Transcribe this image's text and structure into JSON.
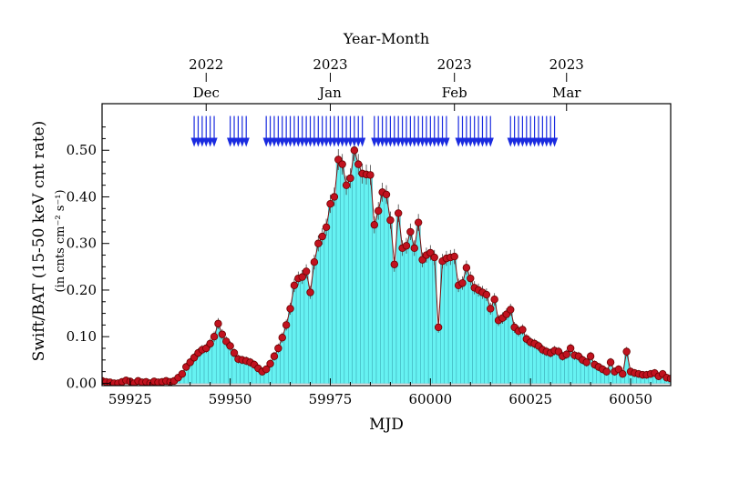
{
  "chart_data": {
    "type": "bar",
    "xlabel": "MJD",
    "ylabel": "Swift/BAT (15-50 keV cnt rate)",
    "ylabel_sub": "(in cnts cm⁻² s⁻¹)",
    "top_axis_title": "Year-Month",
    "xlim": [
      59918,
      60060
    ],
    "ylim": [
      -0.005,
      0.6
    ],
    "x_ticks": [
      59925,
      59950,
      59975,
      60000,
      60025,
      60050
    ],
    "y_ticks": [
      0.0,
      0.1,
      0.2,
      0.3,
      0.4,
      0.5
    ],
    "y_tick_labels": [
      "0.00",
      "0.10",
      "0.20",
      "0.30",
      "0.40",
      "0.50"
    ],
    "top_ticks": [
      {
        "mjd": 59944,
        "year": "2022",
        "month": "Dec"
      },
      {
        "mjd": 59975,
        "year": "2023",
        "month": "Jan"
      },
      {
        "mjd": 60006,
        "year": "2023",
        "month": "Feb"
      },
      {
        "mjd": 60034,
        "year": "2023",
        "month": "Mar"
      }
    ],
    "colors": {
      "bar_fill": "#66f2f2",
      "bar_edge": "#3aa9b5",
      "point": "#c1121f",
      "point_edge": "#6b0000",
      "line": "#7a1010",
      "arrow": "#1a2be0"
    },
    "points": [
      [
        59918,
        0.005
      ],
      [
        59919,
        0.003
      ],
      [
        59920,
        0.002
      ],
      [
        59921,
        0.0
      ],
      [
        59922,
        0.0
      ],
      [
        59923,
        0.003
      ],
      [
        59924,
        0.006
      ],
      [
        59925,
        0.004
      ],
      [
        59926,
        0.0
      ],
      [
        59927,
        0.005
      ],
      [
        59928,
        0.002
      ],
      [
        59929,
        0.003
      ],
      [
        59930,
        0.0
      ],
      [
        59931,
        0.004
      ],
      [
        59932,
        0.002
      ],
      [
        59933,
        0.003
      ],
      [
        59934,
        0.005
      ],
      [
        59935,
        0.003
      ],
      [
        59936,
        0.005
      ],
      [
        59937,
        0.012
      ],
      [
        59938,
        0.02
      ],
      [
        59939,
        0.035
      ],
      [
        59940,
        0.045
      ],
      [
        59941,
        0.055
      ],
      [
        59942,
        0.065
      ],
      [
        59943,
        0.072
      ],
      [
        59944,
        0.075
      ],
      [
        59945,
        0.085
      ],
      [
        59946,
        0.1
      ],
      [
        59947,
        0.128
      ],
      [
        59948,
        0.105
      ],
      [
        59949,
        0.09
      ],
      [
        59950,
        0.08
      ],
      [
        59951,
        0.065
      ],
      [
        59952,
        0.052
      ],
      [
        59953,
        0.05
      ],
      [
        59954,
        0.048
      ],
      [
        59955,
        0.045
      ],
      [
        59956,
        0.04
      ],
      [
        59957,
        0.032
      ],
      [
        59958,
        0.025
      ],
      [
        59959,
        0.03
      ],
      [
        59960,
        0.042
      ],
      [
        59961,
        0.058
      ],
      [
        59962,
        0.075
      ],
      [
        59963,
        0.098
      ],
      [
        59964,
        0.125
      ],
      [
        59965,
        0.16
      ],
      [
        59966,
        0.21
      ],
      [
        59967,
        0.225
      ],
      [
        59968,
        0.228
      ],
      [
        59969,
        0.24
      ],
      [
        59970,
        0.195
      ],
      [
        59971,
        0.26
      ],
      [
        59972,
        0.3
      ],
      [
        59973,
        0.315
      ],
      [
        59974,
        0.335
      ],
      [
        59975,
        0.385
      ],
      [
        59976,
        0.4
      ],
      [
        59977,
        0.48
      ],
      [
        59978,
        0.47
      ],
      [
        59979,
        0.425
      ],
      [
        59980,
        0.44
      ],
      [
        59981,
        0.5
      ],
      [
        59982,
        0.47
      ],
      [
        59983,
        0.45
      ],
      [
        59984,
        0.448
      ],
      [
        59985,
        0.447
      ],
      [
        59986,
        0.34
      ],
      [
        59987,
        0.37
      ],
      [
        59988,
        0.41
      ],
      [
        59989,
        0.405
      ],
      [
        59990,
        0.35
      ],
      [
        59991,
        0.255
      ],
      [
        59992,
        0.365
      ],
      [
        59993,
        0.29
      ],
      [
        59994,
        0.295
      ],
      [
        59995,
        0.325
      ],
      [
        59996,
        0.29
      ],
      [
        59997,
        0.345
      ],
      [
        59998,
        0.265
      ],
      [
        59999,
        0.275
      ],
      [
        60000,
        0.28
      ],
      [
        60001,
        0.27
      ],
      [
        60002,
        0.12
      ],
      [
        60003,
        0.262
      ],
      [
        60004,
        0.268
      ],
      [
        60005,
        0.27
      ],
      [
        60006,
        0.272
      ],
      [
        60007,
        0.21
      ],
      [
        60008,
        0.215
      ],
      [
        60009,
        0.248
      ],
      [
        60010,
        0.225
      ],
      [
        60011,
        0.205
      ],
      [
        60012,
        0.2
      ],
      [
        60013,
        0.195
      ],
      [
        60014,
        0.19
      ],
      [
        60015,
        0.16
      ],
      [
        60016,
        0.18
      ],
      [
        60017,
        0.135
      ],
      [
        60018,
        0.14
      ],
      [
        60019,
        0.148
      ],
      [
        60020,
        0.158
      ],
      [
        60021,
        0.12
      ],
      [
        60022,
        0.112
      ],
      [
        60023,
        0.115
      ],
      [
        60024,
        0.095
      ],
      [
        60025,
        0.088
      ],
      [
        60026,
        0.085
      ],
      [
        60027,
        0.08
      ],
      [
        60028,
        0.072
      ],
      [
        60029,
        0.068
      ],
      [
        60030,
        0.065
      ],
      [
        60031,
        0.07
      ],
      [
        60032,
        0.068
      ],
      [
        60033,
        0.058
      ],
      [
        60034,
        0.062
      ],
      [
        60035,
        0.075
      ],
      [
        60036,
        0.06
      ],
      [
        60037,
        0.058
      ],
      [
        60038,
        0.05
      ],
      [
        60039,
        0.045
      ],
      [
        60040,
        0.058
      ],
      [
        60041,
        0.04
      ],
      [
        60042,
        0.035
      ],
      [
        60043,
        0.03
      ],
      [
        60044,
        0.025
      ],
      [
        60045,
        0.045
      ],
      [
        60046,
        0.025
      ],
      [
        60047,
        0.03
      ],
      [
        60048,
        0.02
      ],
      [
        60049,
        0.068
      ],
      [
        60050,
        0.025
      ],
      [
        60051,
        0.022
      ],
      [
        60052,
        0.02
      ],
      [
        60053,
        0.018
      ],
      [
        60054,
        0.018
      ],
      [
        60055,
        0.02
      ],
      [
        60056,
        0.022
      ],
      [
        60057,
        0.015
      ],
      [
        60058,
        0.02
      ],
      [
        60059,
        0.012
      ],
      [
        60060,
        0.01
      ]
    ],
    "arrows_mjd": [
      59941,
      59942,
      59943,
      59944,
      59945,
      59946,
      59950,
      59951,
      59952,
      59953,
      59954,
      59959,
      59960,
      59961,
      59962,
      59963,
      59964,
      59965,
      59966,
      59967,
      59968,
      59969,
      59970,
      59971,
      59972,
      59973,
      59974,
      59975,
      59976,
      59977,
      59978,
      59979,
      59980,
      59981,
      59982,
      59983,
      59986,
      59987,
      59988,
      59989,
      59990,
      59991,
      59992,
      59993,
      59994,
      59995,
      59996,
      59997,
      59998,
      59999,
      60000,
      60001,
      60002,
      60003,
      60004,
      60007,
      60008,
      60009,
      60010,
      60011,
      60012,
      60013,
      60014,
      60015,
      60020,
      60021,
      60022,
      60023,
      60024,
      60025,
      60026,
      60027,
      60028,
      60029,
      60030,
      60031
    ],
    "arrow_y": 0.515
  }
}
